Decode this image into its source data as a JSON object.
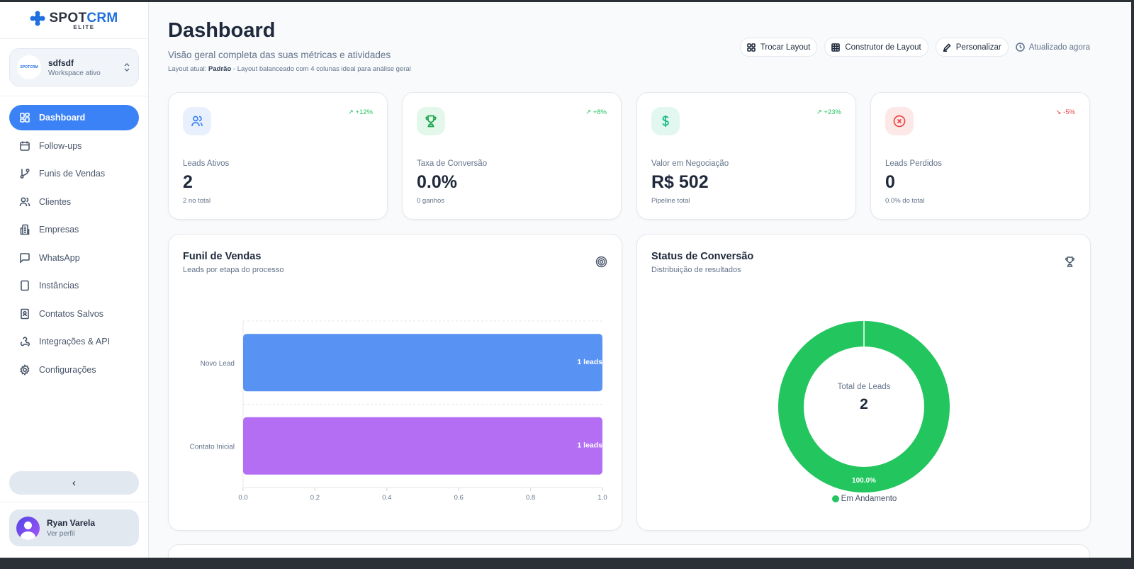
{
  "brand": {
    "name_a": "SPOT",
    "name_b": "CRM",
    "tag": "ELITE"
  },
  "workspace": {
    "logo_text": "SPOTCRM",
    "name": "sdfsdf",
    "status": "Workspace ativo"
  },
  "sidebar": {
    "items": [
      {
        "label": "Dashboard",
        "icon": "layout-grid-icon",
        "active": true
      },
      {
        "label": "Follow-ups",
        "icon": "calendar-icon"
      },
      {
        "label": "Funis de Vendas",
        "icon": "git-branch-icon"
      },
      {
        "label": "Clientes",
        "icon": "users-icon"
      },
      {
        "label": "Empresas",
        "icon": "building-icon"
      },
      {
        "label": "WhatsApp",
        "icon": "message-square-icon"
      },
      {
        "label": "Instâncias",
        "icon": "tablet-icon"
      },
      {
        "label": "Contatos Salvos",
        "icon": "contact-book-icon"
      },
      {
        "label": "Integrações & API",
        "icon": "webhook-icon"
      },
      {
        "label": "Configurações",
        "icon": "gear-icon"
      }
    ],
    "collapse": "‹"
  },
  "user": {
    "name": "Ryan Varela",
    "link": "Ver perfil"
  },
  "header": {
    "title": "Dashboard",
    "subtitle": "Visão geral completa das suas métricas e atividades",
    "layout_prefix": "Layout atual:",
    "layout_name": "Padrão",
    "layout_desc": " - Layout balanceado com 4 colunas ideal para análise geral"
  },
  "toolbar": {
    "switch": "Trocar Layout",
    "builder": "Construtor de Layout",
    "customize": "Personalizar",
    "updated": "Atualizado agora"
  },
  "kpis": [
    {
      "label": "Leads Ativos",
      "value": "2",
      "foot": "2 no total",
      "trend": "+12%",
      "trend_dir": "up",
      "color": "#3b82f6",
      "bg": "#e8f0fe"
    },
    {
      "label": "Taxa de Conversão",
      "value": "0.0%",
      "foot": "0 ganhos",
      "trend": "+8%",
      "trend_dir": "up",
      "color": "#16a34a",
      "bg": "#e3f8ea"
    },
    {
      "label": "Valor em Negociação",
      "value": "R$ 502",
      "foot": "Pipeline total",
      "trend": "+23%",
      "trend_dir": "up",
      "color": "#10b981",
      "bg": "#e2f7ef"
    },
    {
      "label": "Leads Perdidos",
      "value": "0",
      "foot": "0.0% do total",
      "trend": "-5%",
      "trend_dir": "down",
      "color": "#ef4444",
      "bg": "#fde8e8"
    }
  ],
  "funnel": {
    "title": "Funil de Vendas",
    "subtitle": "Leads por etapa do processo"
  },
  "status": {
    "title": "Status de Conversão",
    "subtitle": "Distribuição de resultados",
    "center_label": "Total de Leads",
    "center_value": "2"
  },
  "chart_data": [
    {
      "type": "bar",
      "orientation": "horizontal",
      "categories": [
        "Novo Lead",
        "Contato Inicial"
      ],
      "values": [
        1,
        1
      ],
      "data_labels": [
        "1 leads",
        "1 leads"
      ],
      "colors": [
        "#5893f4",
        "#b46ef4"
      ],
      "xlim": [
        0,
        1
      ],
      "xticks": [
        "0.0",
        "0.2",
        "0.4",
        "0.6",
        "0.8",
        "1.0"
      ],
      "grid": true
    },
    {
      "type": "pie",
      "donut": true,
      "slices": [
        {
          "name": "Em Andamento",
          "value": 2,
          "label": "100.0%",
          "color": "#22c55e"
        }
      ],
      "legend": "bottom"
    }
  ]
}
